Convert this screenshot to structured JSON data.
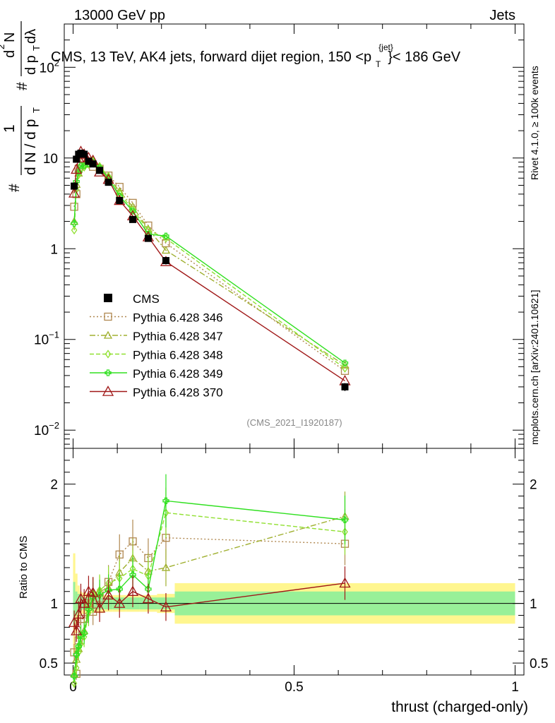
{
  "header": {
    "left": "13000 GeV pp",
    "right": "Jets"
  },
  "title": {
    "main": "CMS, 13 TeV, AK4 jets, forward dijet region, 150 <p",
    "sup": "{jet}",
    "sub": "T",
    "end": "}< 186 GeV"
  },
  "side_labels": {
    "rivet": "Rivet 4.1.0, ≥ 100k events",
    "mcplots": "mcplots.cern.ch [arXiv:2401.10621]"
  },
  "analysis_id": "(CMS_2021_I1920187)",
  "chart_data": {
    "type": "line",
    "xlabel": "thrust (charged-only)",
    "ylabel": "1/N dN/dp_T d²N/dp_T dλ",
    "ylabel_parts": [
      "#",
      "1",
      "d N / d p",
      "T",
      "#",
      "d",
      "2",
      "N",
      "d p",
      "T",
      "d",
      "λ"
    ],
    "ratio_ylabel": "Ratio to CMS",
    "xlim": [
      -0.02,
      1.02
    ],
    "ylim_main": [
      0.0063,
      300
    ],
    "ylim_ratio": [
      0.4,
      2.3
    ],
    "x_ticks": [
      "0",
      "0.5",
      "1"
    ],
    "main_y_ticks": [
      {
        "base": "10",
        "exp": "−2",
        "v": 0.01
      },
      {
        "base": "10",
        "exp": "−1",
        "v": 0.1
      },
      {
        "base": "1",
        "exp": "",
        "v": 1
      },
      {
        "base": "10",
        "exp": "",
        "v": 10
      },
      {
        "base": "10",
        "exp": "2",
        "v": 100
      }
    ],
    "ratio_y_ticks": [
      "0.5",
      "1",
      "2"
    ],
    "data": {
      "name": "CMS",
      "x": [
        0.0025,
        0.0075,
        0.0125,
        0.0175,
        0.025,
        0.035,
        0.045,
        0.06,
        0.08,
        0.105,
        0.135,
        0.17,
        0.21,
        0.615
      ],
      "y": [
        4.9,
        9.7,
        11.0,
        11.3,
        11.0,
        9.2,
        8.6,
        7.3,
        5.4,
        3.4,
        2.1,
        1.3,
        0.74,
        0.03
      ],
      "yerr": [
        0.4,
        0.5,
        0.5,
        0.5,
        0.5,
        0.4,
        0.4,
        0.3,
        0.3,
        0.2,
        0.12,
        0.08,
        0.07,
        0.003
      ]
    },
    "bands": {
      "x": [
        0.0,
        0.005,
        0.01,
        0.015,
        0.02,
        0.03,
        0.04,
        0.05,
        0.07,
        0.09,
        0.12,
        0.15,
        0.19,
        0.23,
        1.0
      ],
      "stat": [
        0.18,
        0.1,
        0.08,
        0.06,
        0.05,
        0.05,
        0.05,
        0.05,
        0.05,
        0.05,
        0.05,
        0.05,
        0.05,
        0.1
      ],
      "total": [
        0.42,
        0.25,
        0.15,
        0.1,
        0.09,
        0.08,
        0.08,
        0.08,
        0.07,
        0.07,
        0.07,
        0.07,
        0.08,
        0.17
      ]
    },
    "series": [
      {
        "name": "Pythia 6.428 346",
        "color": "#b08850",
        "dash": "2,3",
        "marker": "square",
        "x": [
          0.0025,
          0.0075,
          0.0125,
          0.0175,
          0.025,
          0.035,
          0.045,
          0.06,
          0.08,
          0.105,
          0.135,
          0.17,
          0.21,
          0.615
        ],
        "y": [
          2.9,
          4.0,
          7.6,
          9.8,
          9.6,
          9.2,
          8.0,
          7.6,
          6.4,
          4.8,
          3.2,
          1.8,
          1.15,
          0.045
        ],
        "ratio": [
          0.59,
          0.41,
          0.69,
          0.87,
          0.87,
          1.0,
          0.93,
          1.04,
          1.18,
          1.41,
          1.52,
          1.38,
          1.55,
          1.5
        ]
      },
      {
        "name": "Pythia 6.428 347",
        "color": "#a0b030",
        "dash": "8,3,2,3",
        "marker": "triangle",
        "x": [
          0.0025,
          0.0075,
          0.0125,
          0.0175,
          0.025,
          0.035,
          0.045,
          0.06,
          0.08,
          0.105,
          0.135,
          0.17,
          0.21,
          0.615
        ],
        "y": [
          2.0,
          5.1,
          6.8,
          8.2,
          8.5,
          9.2,
          9.4,
          8.0,
          6.1,
          4.3,
          2.9,
          1.65,
          0.96,
          0.052
        ],
        "ratio": [
          0.41,
          0.53,
          0.62,
          0.73,
          0.77,
          1.0,
          1.09,
          1.1,
          1.13,
          1.26,
          1.38,
          1.27,
          1.3,
          1.73
        ]
      },
      {
        "name": "Pythia 6.428 348",
        "color": "#90e030",
        "dash": "6,3",
        "marker": "diamond",
        "x": [
          0.0025,
          0.0075,
          0.0125,
          0.0175,
          0.025,
          0.035,
          0.045,
          0.06,
          0.08,
          0.105,
          0.135,
          0.17,
          0.21,
          0.615
        ],
        "y": [
          1.6,
          4.5,
          6.5,
          7.5,
          7.9,
          8.5,
          9.3,
          8.1,
          6.3,
          4.1,
          2.7,
          1.6,
          1.3,
          0.048
        ],
        "ratio": [
          0.33,
          0.46,
          0.59,
          0.66,
          0.72,
          0.92,
          1.08,
          1.11,
          1.17,
          1.21,
          1.29,
          1.23,
          1.76,
          1.6
        ]
      },
      {
        "name": "Pythia 6.428 349",
        "color": "#30e020",
        "dash": "",
        "marker": "cross",
        "x": [
          0.0025,
          0.0075,
          0.0125,
          0.0175,
          0.025,
          0.035,
          0.045,
          0.06,
          0.08,
          0.105,
          0.135,
          0.17,
          0.21,
          0.615
        ],
        "y": [
          1.9,
          5.5,
          7.0,
          8.2,
          8.2,
          8.7,
          9.0,
          7.8,
          6.0,
          3.8,
          2.6,
          1.45,
          1.38,
          0.055
        ],
        "ratio": [
          0.39,
          0.57,
          0.64,
          0.73,
          0.75,
          0.95,
          1.05,
          1.07,
          1.11,
          1.12,
          1.24,
          1.12,
          1.86,
          1.7
        ]
      },
      {
        "name": "Pythia 6.428 370",
        "color": "#a01818",
        "dash": "",
        "marker": "opentriangle",
        "x": [
          0.0025,
          0.0075,
          0.0125,
          0.0175,
          0.025,
          0.035,
          0.045,
          0.06,
          0.08,
          0.105,
          0.135,
          0.17,
          0.21,
          0.615
        ],
        "y": [
          4.1,
          7.5,
          10.0,
          11.8,
          11.0,
          10.1,
          9.4,
          7.0,
          5.8,
          3.4,
          2.3,
          1.35,
          0.72,
          0.035
        ],
        "ratio": [
          0.84,
          0.77,
          0.91,
          1.04,
          1.0,
          1.1,
          1.09,
          0.96,
          1.07,
          1.0,
          1.1,
          1.04,
          0.97,
          1.17
        ]
      }
    ]
  }
}
